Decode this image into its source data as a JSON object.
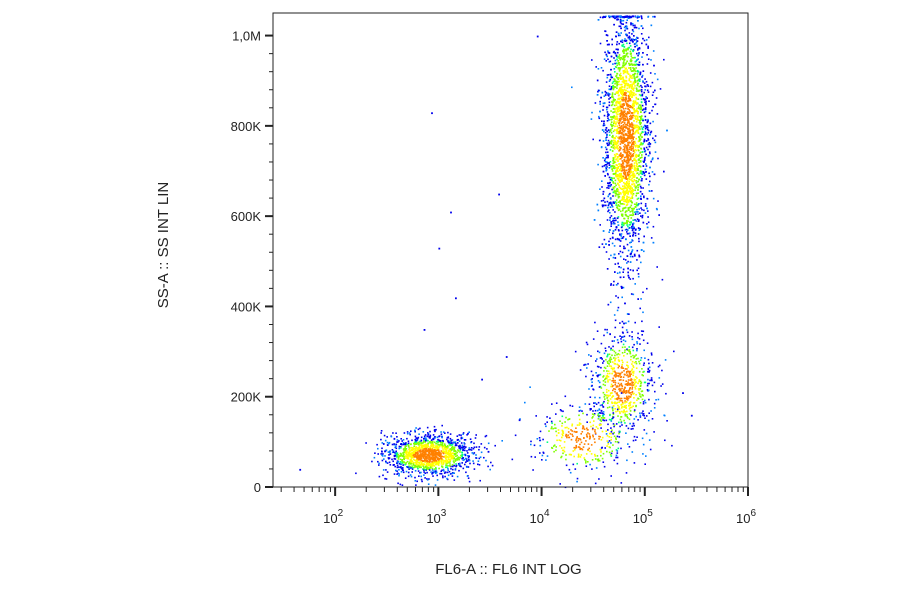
{
  "chart_data": {
    "type": "scatter",
    "subtype": "density-colored flow cytometry dot plot",
    "xlabel": "FL6-A :: FL6 INT LOG",
    "ylabel": "SS-A :: SS INT LIN",
    "x_scale": "log",
    "y_scale": "linear",
    "xlim": [
      25,
      1000000
    ],
    "ylim": [
      0,
      1050000
    ],
    "x_ticks": [
      {
        "base": "10",
        "exp": "2",
        "value": 100
      },
      {
        "base": "10",
        "exp": "3",
        "value": 1000
      },
      {
        "base": "10",
        "exp": "4",
        "value": 10000
      },
      {
        "base": "10",
        "exp": "5",
        "value": 100000
      },
      {
        "base": "10",
        "exp": "6",
        "value": 1000000
      }
    ],
    "y_ticks": [
      {
        "label": "0",
        "value": 0
      },
      {
        "label": "200K",
        "value": 200000
      },
      {
        "label": "400K",
        "value": 400000
      },
      {
        "label": "600K",
        "value": 600000
      },
      {
        "label": "800K",
        "value": 800000
      },
      {
        "label": "1,0M",
        "value": 1000000
      }
    ],
    "grid": false,
    "legend": "none",
    "density_colors": [
      "#0000ee",
      "#0080ff",
      "#00d0ff",
      "#00ff80",
      "#80ff00",
      "#ffff00",
      "#ff8000",
      "#ff0000"
    ],
    "clusters": [
      {
        "center": [
          800,
          72000
        ],
        "spread_log10_x": 0.22,
        "spread_y": 22000,
        "points": 1400
      },
      {
        "center": [
          65000,
          780000
        ],
        "spread_log10_x": 0.11,
        "spread_y": 140000,
        "points": 3200
      },
      {
        "center": [
          60000,
          230000
        ],
        "spread_log10_x": 0.15,
        "spread_y": 60000,
        "points": 700
      },
      {
        "center": [
          25000,
          110000
        ],
        "spread_log10_x": 0.25,
        "spread_y": 40000,
        "points": 350
      }
    ],
    "sparse_points": [
      [
        9000,
        1000000
      ],
      [
        850,
        830000
      ],
      [
        1300,
        610000
      ],
      [
        1000,
        530000
      ],
      [
        1450,
        420000
      ],
      [
        720,
        350000
      ],
      [
        3800,
        650000
      ],
      [
        2600,
        240000
      ],
      [
        4500,
        290000
      ],
      [
        230000,
        210000
      ],
      [
        280000,
        160000
      ],
      [
        45,
        40000
      ],
      [
        3000,
        80000
      ],
      [
        6000,
        150000
      ],
      [
        1900,
        120000
      ]
    ]
  }
}
